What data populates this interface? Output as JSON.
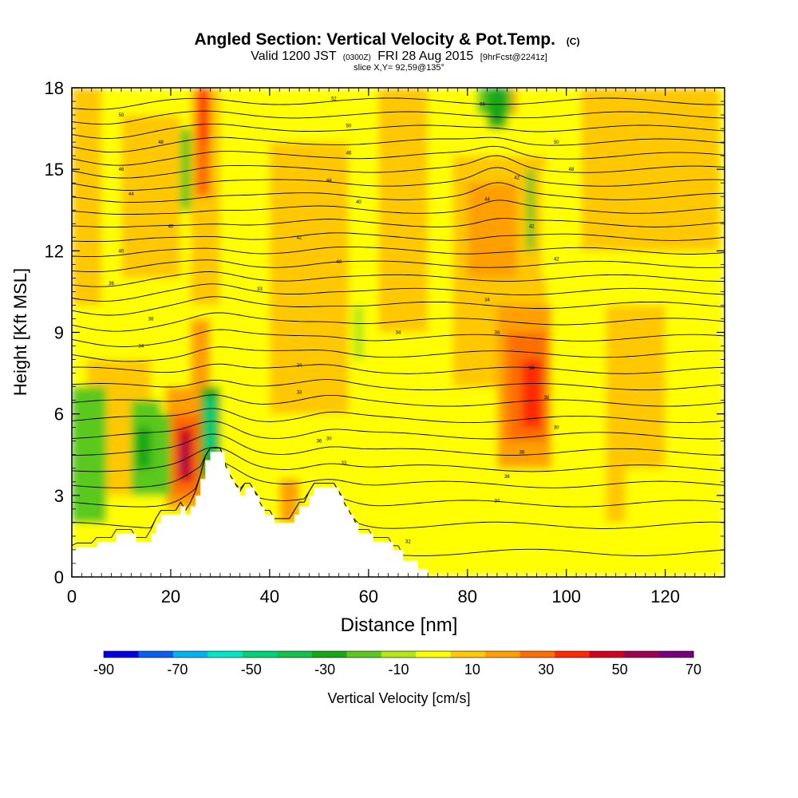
{
  "chart_data": {
    "type": "heatmap",
    "title": "Angled Section: Vertical Velocity & Pot.Temp.",
    "title_tag": "(C)",
    "subtitle": {
      "prefix": "Valid 1200 JST",
      "utc": "(0300Z)",
      "date": "FRI 28 Aug 2015",
      "forecast": "[9hrFcst@2241z]"
    },
    "slice_label": "slice X,Y= 92,59@135°",
    "xlabel": "Distance [nm]",
    "ylabel": "Height [Kft MSL]",
    "xlim": [
      0,
      132
    ],
    "ylim": [
      0,
      18
    ],
    "x_ticks": [
      "0",
      "20",
      "40",
      "60",
      "80",
      "100",
      "120"
    ],
    "y_ticks": [
      "0",
      "3",
      "6",
      "9",
      "12",
      "15",
      "18"
    ],
    "colorbar": {
      "label": "Vertical Velocity [cm/s]",
      "ticks": [
        "-90",
        "-70",
        "-50",
        "-30",
        "-10",
        "10",
        "30",
        "50",
        "70"
      ],
      "bins": [
        -90,
        -80,
        -70,
        -60,
        -50,
        -40,
        -30,
        -20,
        -10,
        0,
        10,
        20,
        30,
        40,
        50,
        60,
        70
      ],
      "colors": [
        "#0000e0",
        "#0a5ff0",
        "#00b4f0",
        "#00e6c8",
        "#00d27a",
        "#12c24a",
        "#14a814",
        "#5ac81c",
        "#b4e614",
        "#ffff00",
        "#ffc800",
        "#ffa000",
        "#ff6e00",
        "#ff2a00",
        "#d2001e",
        "#a00050",
        "#78007e"
      ]
    },
    "terrain_profile": [
      [
        0,
        1.0
      ],
      [
        1,
        1.0
      ],
      [
        1,
        1.1
      ],
      [
        5,
        1.1
      ],
      [
        5,
        1.3
      ],
      [
        9,
        1.3
      ],
      [
        9,
        1.6
      ],
      [
        13,
        1.6
      ],
      [
        13,
        1.3
      ],
      [
        16,
        1.3
      ],
      [
        16,
        1.6
      ],
      [
        17,
        1.6
      ],
      [
        17,
        2.0
      ],
      [
        18,
        2.0
      ],
      [
        18,
        2.3
      ],
      [
        22,
        2.3
      ],
      [
        22,
        2.6
      ],
      [
        23,
        2.6
      ],
      [
        23,
        2.3
      ],
      [
        24,
        2.3
      ],
      [
        24,
        2.6
      ],
      [
        25,
        2.6
      ],
      [
        25,
        3.0
      ],
      [
        26,
        3.0
      ],
      [
        26,
        3.6
      ],
      [
        27,
        3.6
      ],
      [
        27,
        4.3
      ],
      [
        28,
        4.3
      ],
      [
        28,
        4.6
      ],
      [
        31,
        4.6
      ],
      [
        31,
        4.0
      ],
      [
        32,
        4.0
      ],
      [
        32,
        3.6
      ],
      [
        33,
        3.6
      ],
      [
        33,
        3.3
      ],
      [
        34,
        3.3
      ],
      [
        34,
        3.0
      ],
      [
        35,
        3.0
      ],
      [
        35,
        3.3
      ],
      [
        37,
        3.3
      ],
      [
        37,
        3.0
      ],
      [
        38,
        3.0
      ],
      [
        38,
        2.6
      ],
      [
        39,
        2.6
      ],
      [
        39,
        2.3
      ],
      [
        41,
        2.3
      ],
      [
        41,
        2.0
      ],
      [
        45,
        2.0
      ],
      [
        45,
        2.3
      ],
      [
        46,
        2.3
      ],
      [
        46,
        2.6
      ],
      [
        48,
        2.6
      ],
      [
        48,
        3.0
      ],
      [
        49,
        3.0
      ],
      [
        49,
        3.3
      ],
      [
        54,
        3.3
      ],
      [
        54,
        3.0
      ],
      [
        55,
        3.0
      ],
      [
        55,
        2.6
      ],
      [
        56,
        2.6
      ],
      [
        56,
        2.3
      ],
      [
        57,
        2.3
      ],
      [
        57,
        2.0
      ],
      [
        58,
        2.0
      ],
      [
        58,
        1.6
      ],
      [
        61,
        1.6
      ],
      [
        61,
        1.3
      ],
      [
        65,
        1.3
      ],
      [
        65,
        1.0
      ],
      [
        67,
        1.0
      ],
      [
        67,
        0.6
      ],
      [
        70,
        0.6
      ],
      [
        70,
        0.3
      ],
      [
        72,
        0.3
      ],
      [
        72,
        0.0
      ]
    ],
    "velocity_cells": [
      {
        "x": 0,
        "y": 0,
        "w": 132,
        "h": 18,
        "v": 2
      },
      {
        "x": 0,
        "y": 10,
        "w": 6,
        "h": 8,
        "v": 12
      },
      {
        "x": 10,
        "y": 11,
        "w": 12,
        "h": 6,
        "v": 12
      },
      {
        "x": 40,
        "y": 6,
        "w": 16,
        "h": 10,
        "v": 12
      },
      {
        "x": 62,
        "y": 9,
        "w": 10,
        "h": 9,
        "v": 12
      },
      {
        "x": 103,
        "y": 12,
        "w": 28,
        "h": 6,
        "v": 12
      },
      {
        "x": 108,
        "y": 2,
        "w": 12,
        "h": 8,
        "v": 12
      },
      {
        "x": 3,
        "y": 3,
        "w": 13,
        "h": 5,
        "v": 12
      },
      {
        "x": 24,
        "y": 10,
        "w": 6,
        "h": 8,
        "v": 15
      },
      {
        "x": 25,
        "y": 14,
        "w": 3,
        "h": 4,
        "v": 35
      },
      {
        "x": 26,
        "y": 16,
        "w": 1.5,
        "h": 2,
        "v": 45
      },
      {
        "x": 77,
        "y": 7,
        "w": 19,
        "h": 8.5,
        "v": 15
      },
      {
        "x": 80,
        "y": 11,
        "w": 10,
        "h": 3.5,
        "v": 25
      },
      {
        "x": 86,
        "y": 4,
        "w": 11,
        "h": 6,
        "v": 25
      },
      {
        "x": 88,
        "y": 5,
        "w": 8,
        "h": 4,
        "v": 35
      },
      {
        "x": 91,
        "y": 5.5,
        "w": 4,
        "h": 2.5,
        "v": 45
      },
      {
        "x": 19,
        "y": 2.5,
        "w": 8,
        "h": 4.5,
        "v": 22
      },
      {
        "x": 20,
        "y": 3,
        "w": 6,
        "h": 3,
        "v": 35
      },
      {
        "x": 21.5,
        "y": 3.5,
        "w": 3,
        "h": 2,
        "v": 50
      },
      {
        "x": 22,
        "y": 3.8,
        "w": 1.2,
        "h": 1.2,
        "v": 65
      },
      {
        "x": 24,
        "y": 6,
        "w": 4,
        "h": 3.5,
        "v": 25
      },
      {
        "x": 42,
        "y": 2,
        "w": 4,
        "h": 1.6,
        "v": 25
      },
      {
        "x": 86,
        "y": 17,
        "w": 4,
        "h": 1,
        "v": 25
      },
      {
        "x": 0,
        "y": 2,
        "w": 7,
        "h": 5,
        "v": -15
      },
      {
        "x": 12,
        "y": 3,
        "w": 6,
        "h": 3.5,
        "v": -15
      },
      {
        "x": 13,
        "y": 4,
        "w": 3,
        "h": 1.5,
        "v": -25
      },
      {
        "x": 17,
        "y": 3,
        "w": 3,
        "h": 3,
        "v": -15
      },
      {
        "x": 26,
        "y": 3.6,
        "w": 4,
        "h": 3.4,
        "v": -25
      },
      {
        "x": 27,
        "y": 4.6,
        "w": 2,
        "h": 2,
        "v": -45
      },
      {
        "x": 22,
        "y": 13.5,
        "w": 2,
        "h": 3,
        "v": -15
      },
      {
        "x": 82,
        "y": 17,
        "w": 7,
        "h": 1,
        "v": -15
      },
      {
        "x": 84,
        "y": 16.5,
        "w": 4,
        "h": 1.5,
        "v": -25
      },
      {
        "x": 92,
        "y": 12,
        "w": 1.5,
        "h": 3,
        "v": -15
      },
      {
        "x": 57,
        "y": 8,
        "w": 2,
        "h": 2,
        "v": -10
      },
      {
        "x": 95,
        "y": 11,
        "w": 6,
        "h": 4,
        "v": 6
      },
      {
        "x": 68,
        "y": 0,
        "w": 18,
        "h": 3,
        "v": 6
      },
      {
        "x": 112,
        "y": 0,
        "w": 12,
        "h": 4,
        "v": 6
      }
    ],
    "isentrope_levels": [
      0.9,
      1.9,
      2.7,
      3.4,
      4.0,
      4.6,
      5.2,
      5.8,
      6.4,
      7.0,
      7.6,
      8.2,
      8.8,
      9.4,
      10.0,
      10.5,
      11.0,
      11.5,
      12.0,
      12.5,
      13.0,
      13.5,
      14.0,
      14.5,
      15.0,
      15.5,
      16.0,
      16.5,
      17.0,
      17.5
    ],
    "isentrope_labels": [
      {
        "x": 14,
        "y": 8.5,
        "text": "34"
      },
      {
        "x": 46,
        "y": 7.8,
        "text": "34"
      },
      {
        "x": 46,
        "y": 6.8,
        "text": "33"
      },
      {
        "x": 52,
        "y": 5.1,
        "text": "30"
      },
      {
        "x": 50,
        "y": 5.0,
        "text": "36"
      },
      {
        "x": 55,
        "y": 4.2,
        "text": "33"
      },
      {
        "x": 68,
        "y": 1.3,
        "text": "32"
      },
      {
        "x": 86,
        "y": 2.8,
        "text": "34"
      },
      {
        "x": 88,
        "y": 3.7,
        "text": "36"
      },
      {
        "x": 91,
        "y": 4.6,
        "text": "38"
      },
      {
        "x": 98,
        "y": 5.5,
        "text": "30"
      },
      {
        "x": 96,
        "y": 6.6,
        "text": "38"
      },
      {
        "x": 93,
        "y": 7.7,
        "text": "34"
      },
      {
        "x": 86,
        "y": 9.0,
        "text": "34"
      },
      {
        "x": 84,
        "y": 10.2,
        "text": "34"
      },
      {
        "x": 66,
        "y": 9.0,
        "text": "34"
      },
      {
        "x": 38,
        "y": 10.6,
        "text": "33"
      },
      {
        "x": 16,
        "y": 9.5,
        "text": "36"
      },
      {
        "x": 8,
        "y": 10.8,
        "text": "36"
      },
      {
        "x": 10,
        "y": 12.0,
        "text": "40"
      },
      {
        "x": 20,
        "y": 12.9,
        "text": "40"
      },
      {
        "x": 54,
        "y": 11.6,
        "text": "40"
      },
      {
        "x": 46,
        "y": 12.5,
        "text": "42"
      },
      {
        "x": 58,
        "y": 13.8,
        "text": "40"
      },
      {
        "x": 84,
        "y": 13.9,
        "text": "44"
      },
      {
        "x": 90,
        "y": 14.7,
        "text": "42"
      },
      {
        "x": 93,
        "y": 12.9,
        "text": "42"
      },
      {
        "x": 98,
        "y": 11.7,
        "text": "42"
      },
      {
        "x": 101,
        "y": 15.0,
        "text": "48"
      },
      {
        "x": 98,
        "y": 16.0,
        "text": "50"
      },
      {
        "x": 10,
        "y": 17.0,
        "text": "50"
      },
      {
        "x": 18,
        "y": 16.0,
        "text": "48"
      },
      {
        "x": 10,
        "y": 15.0,
        "text": "46"
      },
      {
        "x": 12,
        "y": 14.1,
        "text": "44"
      },
      {
        "x": 52,
        "y": 14.6,
        "text": "44"
      },
      {
        "x": 56,
        "y": 15.6,
        "text": "46"
      },
      {
        "x": 56,
        "y": 16.6,
        "text": "50"
      },
      {
        "x": 53,
        "y": 17.6,
        "text": "52"
      },
      {
        "x": 83,
        "y": 17.4,
        "text": "56"
      }
    ],
    "grid": false,
    "legend": "bottom"
  }
}
